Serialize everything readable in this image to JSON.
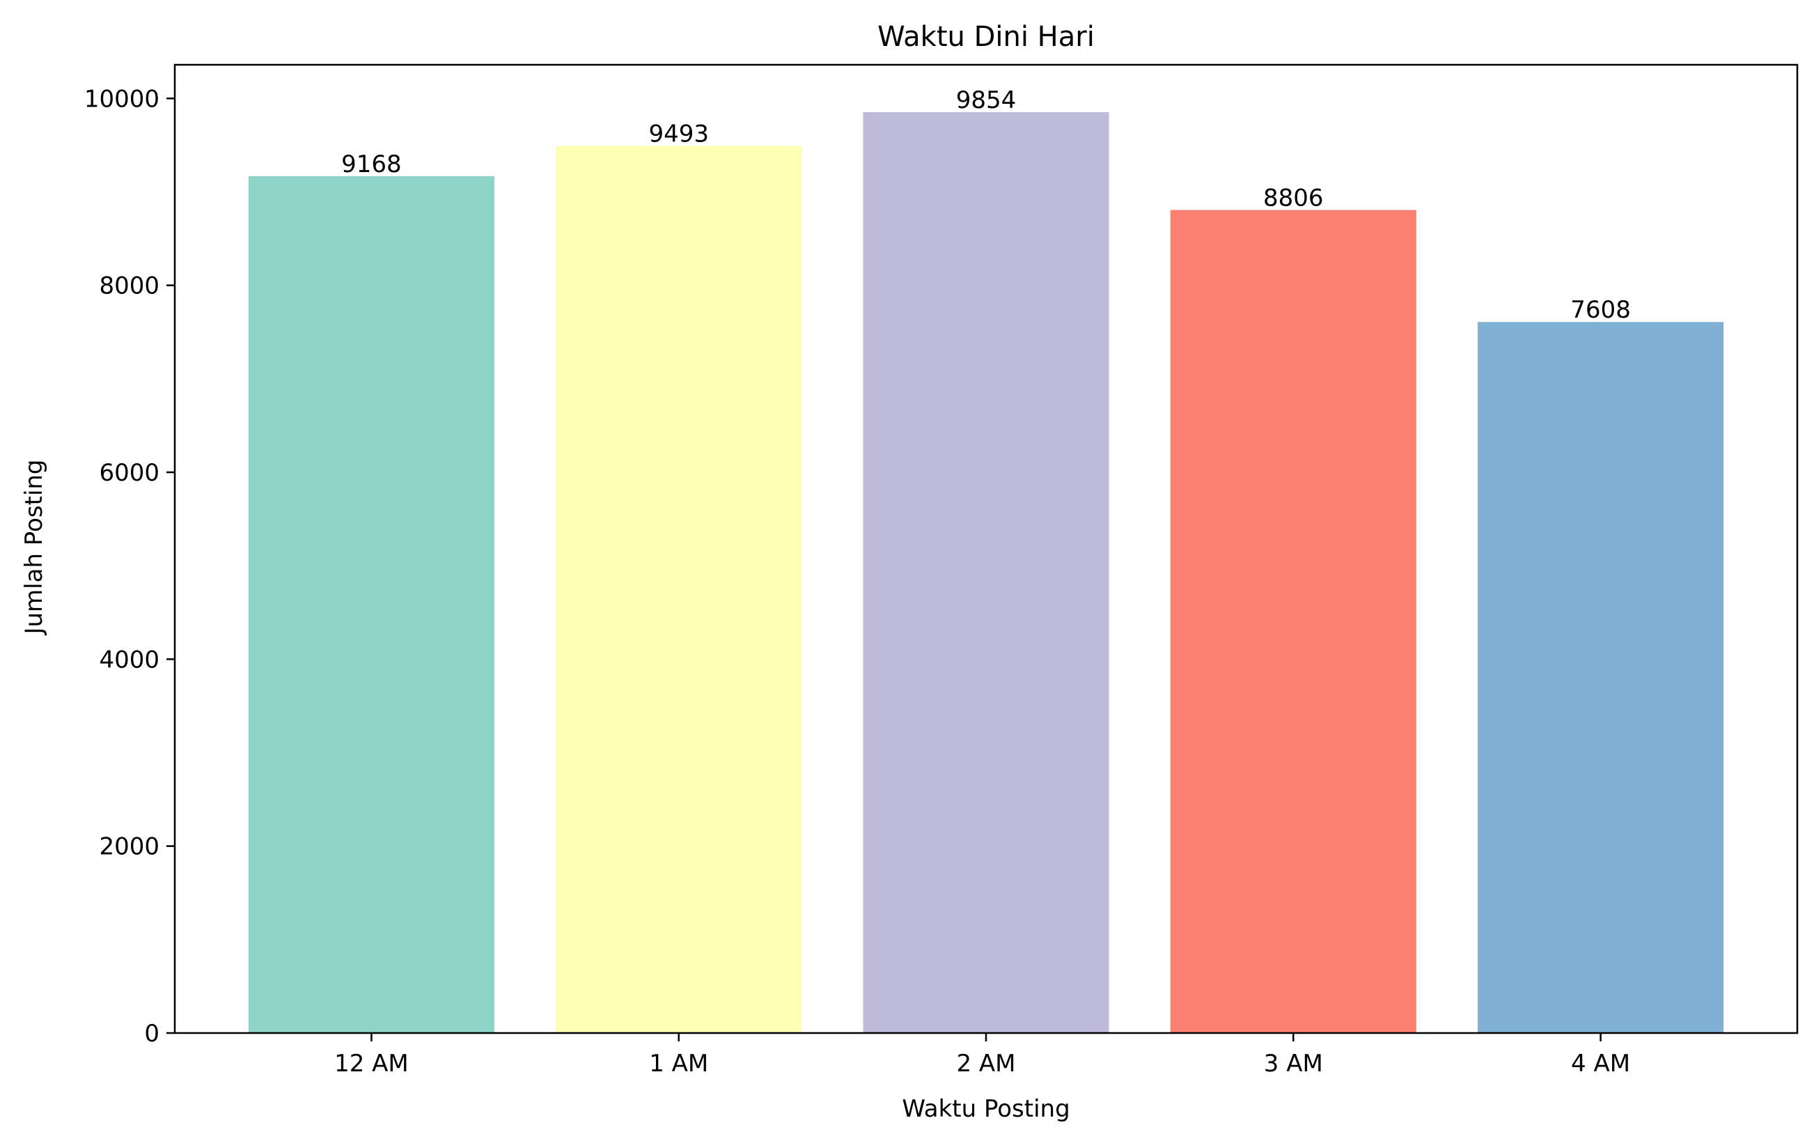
{
  "chart_data": {
    "type": "bar",
    "title": "Waktu Dini Hari",
    "xlabel": "Waktu Posting",
    "ylabel": "Jumlah Posting",
    "categories": [
      "12 AM",
      "1 AM",
      "2 AM",
      "3 AM",
      "4 AM"
    ],
    "values": [
      9168,
      9493,
      9854,
      8806,
      7608
    ],
    "colors": [
      "#8dd3c7",
      "#ffffb3",
      "#bebada",
      "#fb8072",
      "#80b1d3"
    ],
    "ylim": [
      0,
      10360
    ],
    "yticks": [
      0,
      2000,
      4000,
      6000,
      8000,
      10000
    ],
    "ytick_labels": [
      "0",
      "2000",
      "4000",
      "6000",
      "8000",
      "10000"
    ],
    "grid": false,
    "data_labels": [
      "9168",
      "9493",
      "9854",
      "8806",
      "7608"
    ]
  }
}
